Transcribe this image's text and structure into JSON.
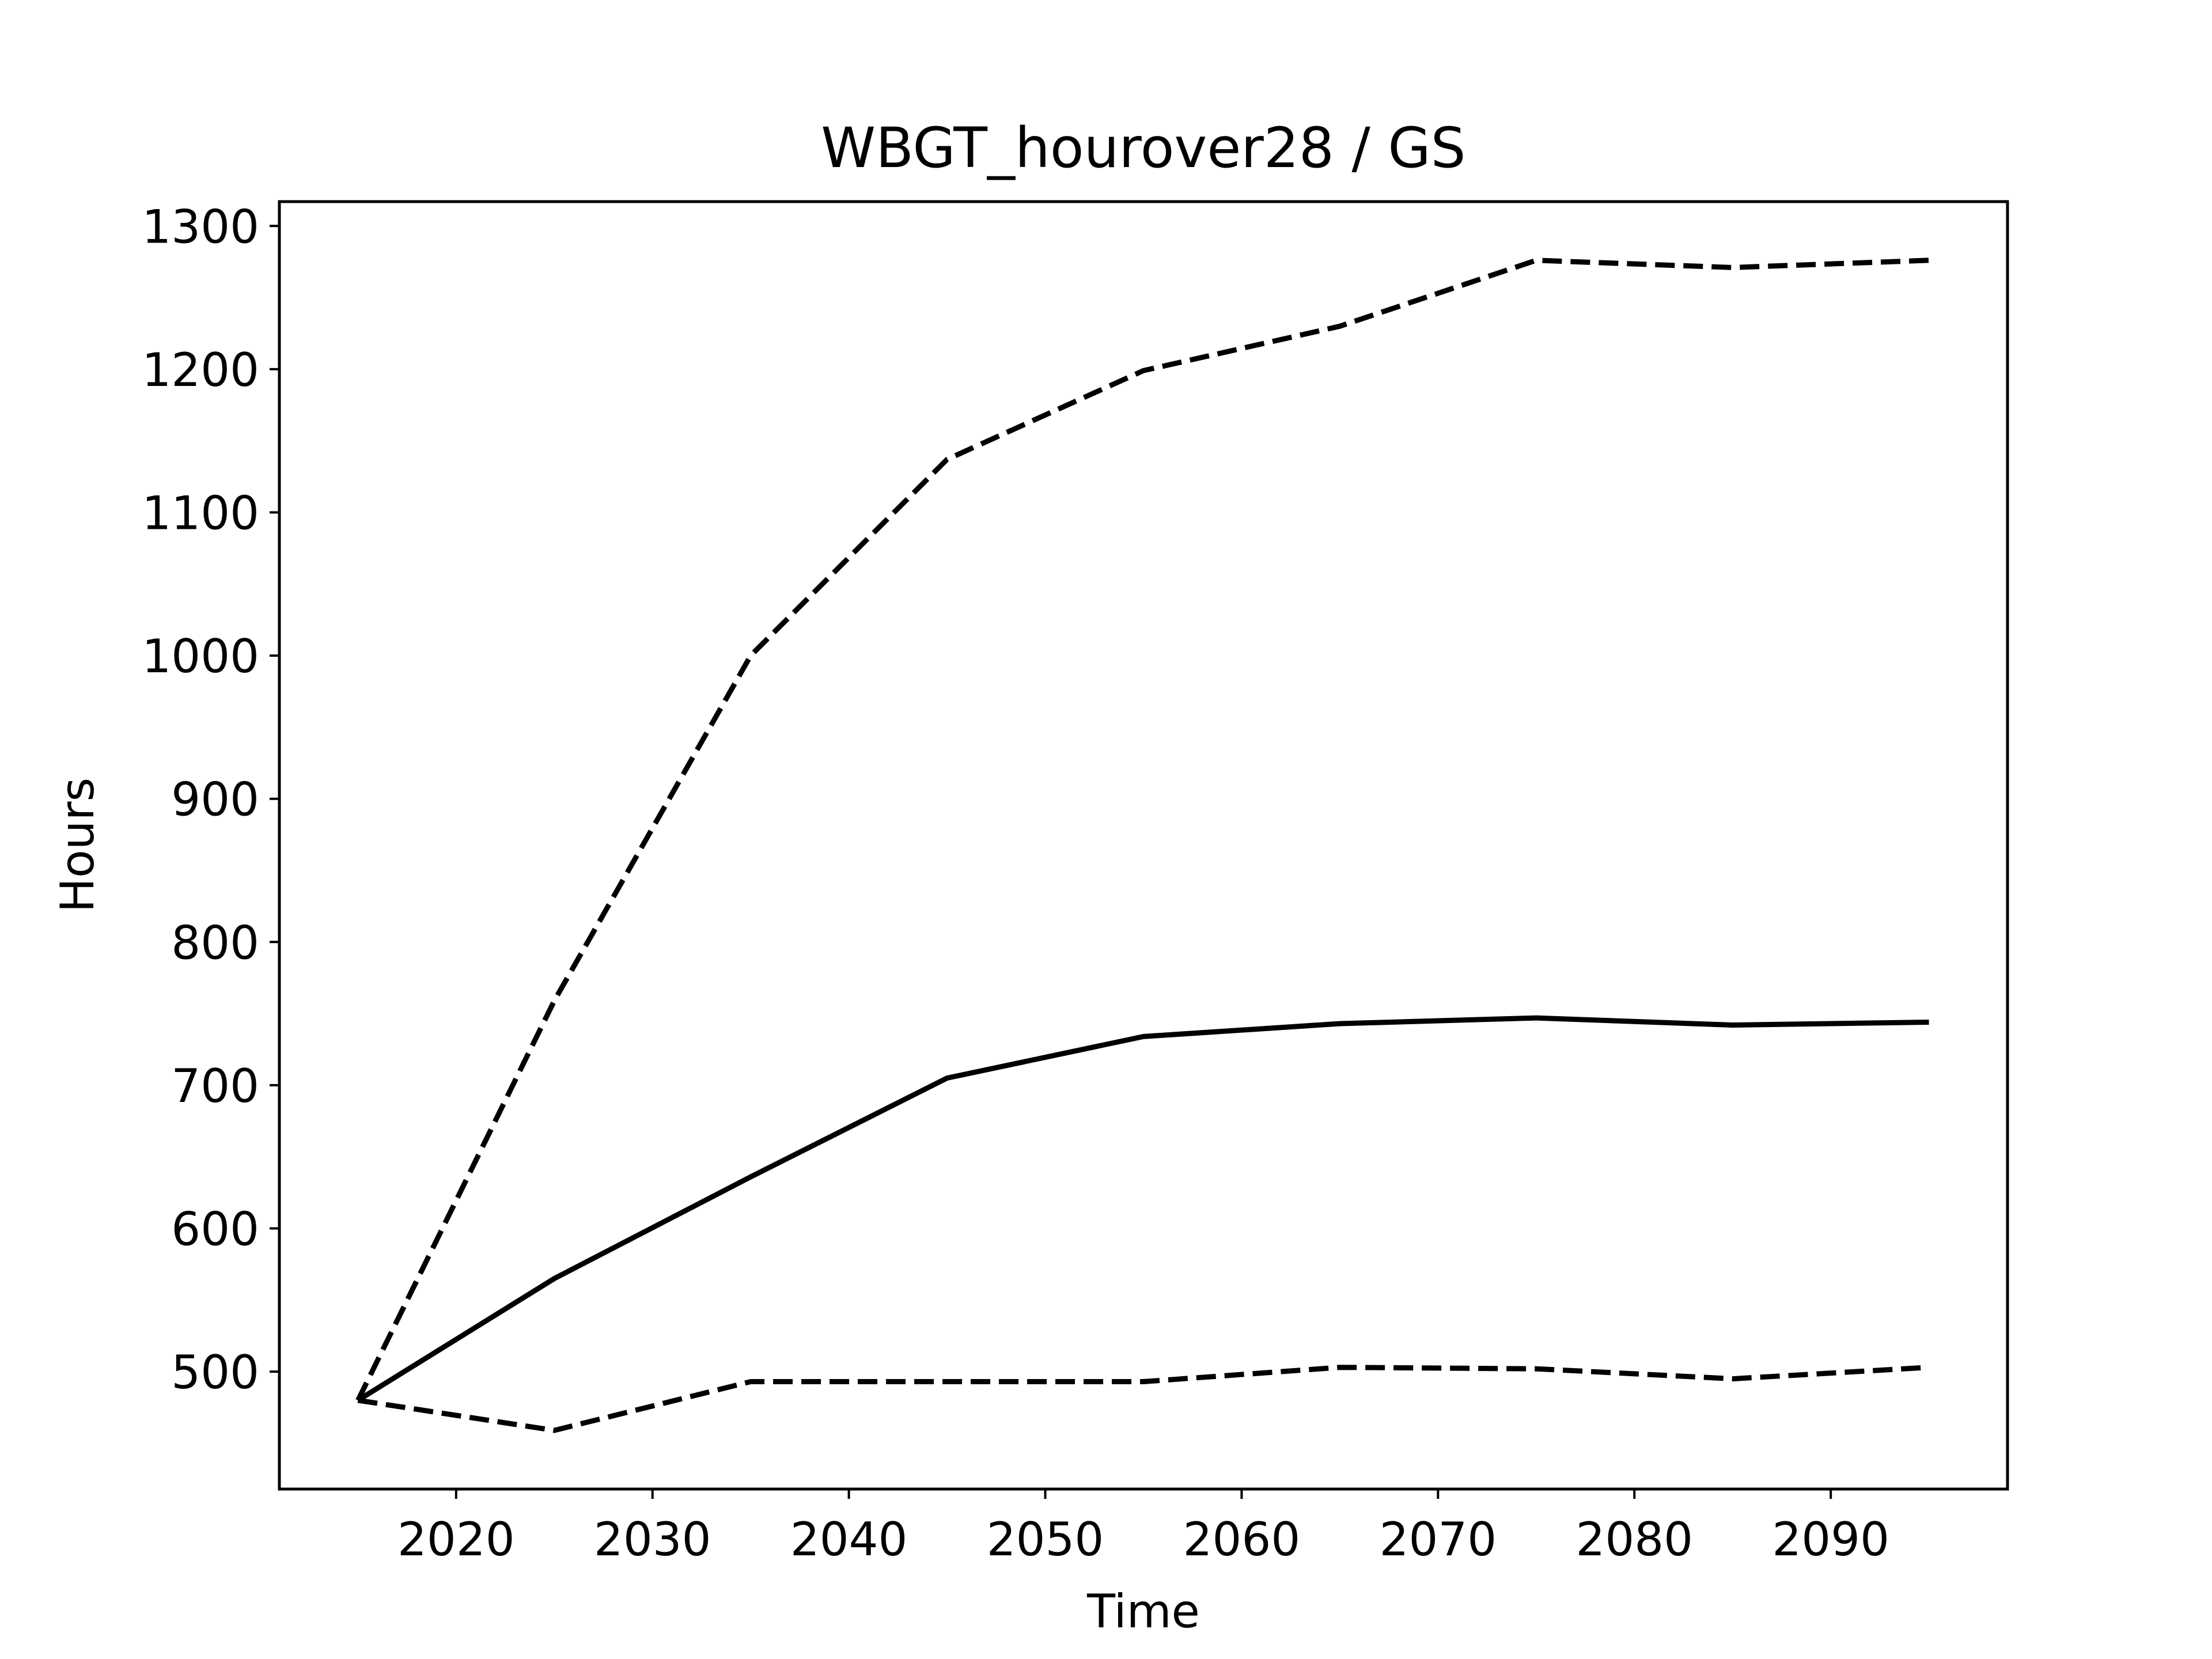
{
  "chart_data": {
    "type": "line",
    "title": "WBGT_hourover28 / GS",
    "xlabel": "Time",
    "ylabel": "Hours",
    "xlim": [
      2011,
      2099
    ],
    "ylim": [
      418,
      1317
    ],
    "xticks": [
      2020,
      2030,
      2040,
      2050,
      2060,
      2070,
      2080,
      2090
    ],
    "yticks": [
      500,
      600,
      700,
      800,
      900,
      1000,
      1100,
      1200,
      1300
    ],
    "grid": false,
    "legend": "none",
    "x": [
      2015,
      2025,
      2035,
      2045,
      2055,
      2065,
      2075,
      2085,
      2095
    ],
    "series": [
      {
        "values": [
          480,
          759,
          1000,
          1137,
          1199,
          1230,
          1276,
          1271,
          1276
        ],
        "style": "dashed",
        "color": "#000000"
      },
      {
        "values": [
          480,
          565,
          636,
          705,
          734,
          743,
          747,
          742,
          744
        ],
        "style": "solid",
        "color": "#000000"
      },
      {
        "values": [
          480,
          459,
          493,
          493,
          493,
          503,
          502,
          495,
          503
        ],
        "style": "dashed",
        "color": "#000000"
      }
    ]
  }
}
